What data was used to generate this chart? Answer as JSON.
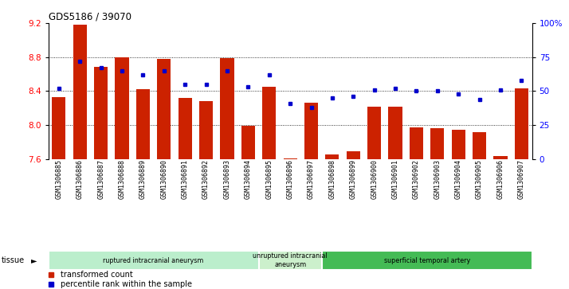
{
  "title": "GDS5186 / 39070",
  "samples": [
    "GSM1306885",
    "GSM1306886",
    "GSM1306887",
    "GSM1306888",
    "GSM1306889",
    "GSM1306890",
    "GSM1306891",
    "GSM1306892",
    "GSM1306893",
    "GSM1306894",
    "GSM1306895",
    "GSM1306896",
    "GSM1306897",
    "GSM1306898",
    "GSM1306899",
    "GSM1306900",
    "GSM1306901",
    "GSM1306902",
    "GSM1306903",
    "GSM1306904",
    "GSM1306905",
    "GSM1306906",
    "GSM1306907"
  ],
  "transformed_count": [
    8.33,
    9.18,
    8.68,
    8.8,
    8.42,
    8.78,
    8.32,
    8.28,
    8.79,
    7.99,
    8.45,
    7.61,
    8.26,
    7.65,
    7.69,
    8.22,
    8.22,
    7.97,
    7.96,
    7.94,
    7.92,
    7.63,
    8.43
  ],
  "percentile_rank": [
    52,
    72,
    67,
    65,
    62,
    65,
    55,
    55,
    65,
    53,
    62,
    41,
    38,
    45,
    46,
    51,
    52,
    50,
    50,
    48,
    44,
    51,
    58
  ],
  "ylim": [
    7.6,
    9.2
  ],
  "yticks_left": [
    7.6,
    8.0,
    8.4,
    8.8,
    9.2
  ],
  "yticks_right_vals": [
    0,
    25,
    50,
    75,
    100
  ],
  "yticks_right_labels": [
    "0",
    "25",
    "50",
    "75",
    "100%"
  ],
  "bar_color": "#cc2200",
  "dot_color": "#0000cc",
  "groups": [
    {
      "label": "ruptured intracranial aneurysm",
      "start": 0,
      "end": 10,
      "color": "#bbeecc"
    },
    {
      "label": "unruptured intracranial\naneurysm",
      "start": 10,
      "end": 13,
      "color": "#ccf0cc"
    },
    {
      "label": "superficial temporal artery",
      "start": 13,
      "end": 23,
      "color": "#44bb55"
    }
  ],
  "background_color": "#ffffff"
}
